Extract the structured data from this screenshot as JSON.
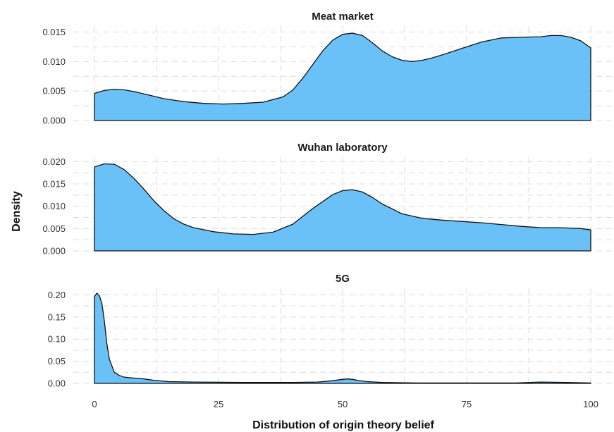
{
  "chart_data": {
    "type": "area",
    "xlabel": "Distribution of origin theory belief",
    "ylabel": "Density",
    "xlim": [
      0,
      100
    ],
    "x_ticks": [
      "0",
      "25",
      "50",
      "75",
      "100"
    ],
    "fill_color": "#6ac1f8",
    "line_color": "#111111",
    "grid": true,
    "facets": [
      {
        "title": "Meat market",
        "ylim": [
          0,
          0.016
        ],
        "y_ticks": [
          "0.000",
          "0.005",
          "0.010",
          "0.015"
        ],
        "x": [
          0,
          2,
          4,
          6,
          8,
          10,
          14,
          18,
          22,
          26,
          30,
          34,
          38,
          40,
          42,
          44,
          46,
          48,
          50,
          52,
          54,
          56,
          58,
          60,
          62,
          64,
          66,
          68,
          70,
          74,
          78,
          82,
          86,
          90,
          92,
          94,
          96,
          98,
          100
        ],
        "y": [
          0.0046,
          0.0051,
          0.0053,
          0.0052,
          0.0049,
          0.0045,
          0.0037,
          0.0032,
          0.0029,
          0.0028,
          0.0029,
          0.0031,
          0.004,
          0.0052,
          0.0072,
          0.0095,
          0.0118,
          0.0136,
          0.0146,
          0.0148,
          0.0144,
          0.0132,
          0.0118,
          0.0108,
          0.0102,
          0.01,
          0.0102,
          0.0106,
          0.0111,
          0.0122,
          0.0133,
          0.014,
          0.0141,
          0.0142,
          0.0144,
          0.0144,
          0.0141,
          0.0135,
          0.0123
        ]
      },
      {
        "title": "Wuhan laboratory",
        "ylim": [
          0,
          0.021
        ],
        "y_ticks": [
          "0.000",
          "0.005",
          "0.010",
          "0.015",
          "0.020"
        ],
        "x": [
          0,
          2,
          4,
          6,
          8,
          10,
          12,
          14,
          16,
          18,
          20,
          24,
          28,
          32,
          36,
          40,
          44,
          48,
          50,
          52,
          54,
          56,
          58,
          62,
          66,
          70,
          74,
          78,
          82,
          86,
          90,
          94,
          98,
          100
        ],
        "y": [
          0.0188,
          0.0195,
          0.0194,
          0.0182,
          0.0162,
          0.0138,
          0.0112,
          0.009,
          0.0072,
          0.006,
          0.0052,
          0.0043,
          0.0038,
          0.0037,
          0.0042,
          0.006,
          0.0095,
          0.0126,
          0.0135,
          0.0137,
          0.0132,
          0.012,
          0.0105,
          0.0083,
          0.0073,
          0.0069,
          0.0066,
          0.0063,
          0.0059,
          0.0055,
          0.0052,
          0.0052,
          0.005,
          0.0047
        ]
      },
      {
        "title": "5G",
        "ylim": [
          0,
          0.215
        ],
        "y_ticks": [
          "0.00",
          "0.05",
          "0.10",
          "0.15",
          "0.20"
        ],
        "x": [
          0,
          0.5,
          1,
          1.5,
          2,
          2.5,
          3,
          4,
          5,
          6,
          8,
          10,
          12,
          15,
          20,
          30,
          40,
          45,
          48,
          50,
          51,
          52,
          53,
          55,
          58,
          65,
          75,
          85,
          90,
          95,
          100
        ],
        "y": [
          0.196,
          0.204,
          0.198,
          0.18,
          0.14,
          0.09,
          0.055,
          0.025,
          0.018,
          0.014,
          0.012,
          0.01,
          0.007,
          0.004,
          0.003,
          0.002,
          0.002,
          0.003,
          0.006,
          0.009,
          0.01,
          0.009,
          0.007,
          0.004,
          0.002,
          0.001,
          0.001,
          0.001,
          0.003,
          0.002,
          0.001
        ]
      }
    ]
  }
}
